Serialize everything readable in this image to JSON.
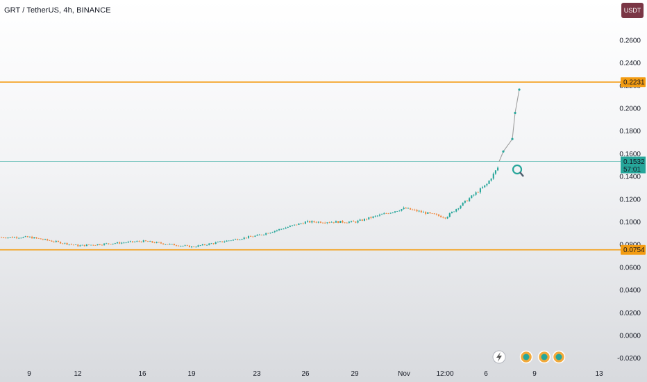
{
  "header": {
    "title": "GRT / TetherUS, 4h, BINANCE",
    "currency_button": "USDT"
  },
  "colors": {
    "up": "#26a69a",
    "down": "#f0883e",
    "level_line": "#f39c12",
    "current_line": "#26a69a",
    "projection": "#9e9e9e",
    "currency_bg": "#7a3645"
  },
  "icons": [
    "lightning-icon",
    "search-magnifier-icon",
    "event-icon",
    "event-icon",
    "event-icon"
  ],
  "chart_data": {
    "type": "candlestick",
    "symbol": "GRT / TetherUS",
    "interval": "4h",
    "exchange": "BINANCE",
    "y_axis": {
      "ticks": [
        "0.2600",
        "0.2400",
        "0.2200",
        "0.2000",
        "0.1800",
        "0.1600",
        "0.1400",
        "0.1200",
        "0.1000",
        "0.0800",
        "0.0600",
        "0.0400",
        "0.0200",
        "0.0000",
        "-0.0200"
      ],
      "range": [
        -0.02,
        0.26
      ]
    },
    "x_axis": {
      "ticks": [
        "9",
        "12",
        "16",
        "19",
        "23",
        "26",
        "29",
        "Nov",
        "12:00",
        "6",
        "9",
        "13"
      ]
    },
    "horizontal_lines": [
      {
        "price": "0.2231",
        "color": "#f39c12"
      },
      {
        "price": "0.0754",
        "color": "#f39c12"
      }
    ],
    "current_price": {
      "price": "0.1532",
      "countdown": "57:01"
    },
    "price_path": [
      [
        "9",
        0.0865
      ],
      [
        "12",
        0.079
      ],
      [
        "16",
        0.083
      ],
      [
        "19",
        0.078
      ],
      [
        "23",
        0.088
      ],
      [
        "26",
        0.1
      ],
      [
        "29",
        0.1
      ],
      [
        "Nov",
        0.112
      ],
      [
        "12:00",
        0.104
      ],
      [
        "6",
        0.133
      ],
      [
        "7",
        0.1532
      ]
    ],
    "projection_path": [
      0.1532,
      0.162,
      0.173,
      0.196,
      0.2165
    ]
  }
}
